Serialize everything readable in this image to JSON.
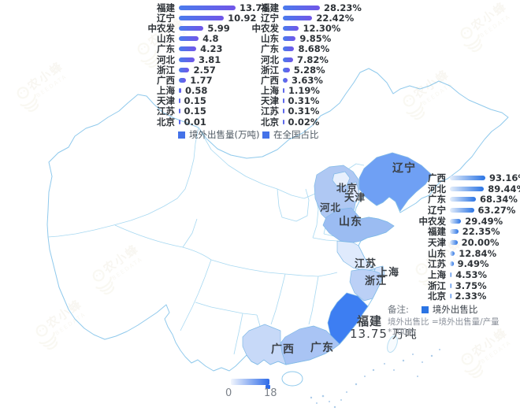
{
  "watermark": {
    "brand": "农小蜂",
    "sub": "BEEDATA"
  },
  "chart_data": [
    {
      "id": "volume",
      "type": "bar",
      "orientation": "horizontal",
      "legend": "境外出售量(万吨)",
      "categories": [
        "福建",
        "辽宁",
        "中农发",
        "山东",
        "广东",
        "河北",
        "浙江",
        "广西",
        "上海",
        "天津",
        "江苏",
        "北京"
      ],
      "values": [
        13.75,
        10.92,
        5.99,
        4.8,
        4.23,
        3.81,
        2.57,
        1.77,
        0.58,
        0.15,
        0.15,
        0.01
      ],
      "value_labels": [
        "13.75",
        "10.92",
        "5.99",
        "4.8",
        "4.23",
        "3.81",
        "2.57",
        "1.77",
        "0.58",
        "0.15",
        "0.15",
        "0.01"
      ],
      "xlim": [
        0,
        13.75
      ],
      "bar_gradient": [
        "#4A7BEC",
        "#7156E8"
      ]
    },
    {
      "id": "share",
      "type": "bar",
      "orientation": "horizontal",
      "legend": "在全国占比",
      "categories": [
        "福建",
        "辽宁",
        "中农发",
        "山东",
        "广东",
        "河北",
        "浙江",
        "广西",
        "上海",
        "天津",
        "江苏",
        "北京"
      ],
      "values": [
        28.23,
        22.42,
        12.3,
        9.85,
        8.68,
        7.82,
        5.28,
        3.63,
        1.19,
        0.31,
        0.31,
        0.02
      ],
      "value_labels": [
        "28.23%",
        "22.42%",
        "12.30%",
        "9.85%",
        "8.68%",
        "7.82%",
        "5.28%",
        "3.63%",
        "1.19%",
        "0.31%",
        "0.31%",
        "0.02%"
      ],
      "xlim": [
        0,
        28.23
      ],
      "bar_gradient": [
        "#4A7BEC",
        "#7156E8"
      ]
    },
    {
      "id": "ratio",
      "type": "bar",
      "orientation": "horizontal",
      "legend": "境外出售比",
      "note_label": "备注:",
      "note": "境外出售比 =境外出售量/产量*100%",
      "categories": [
        "广西",
        "河北",
        "广东",
        "辽宁",
        "中农发",
        "福建",
        "天津",
        "山东",
        "江苏",
        "上海",
        "浙江",
        "北京"
      ],
      "values": [
        93.16,
        89.44,
        68.34,
        63.27,
        29.49,
        22.35,
        20.0,
        12.84,
        9.49,
        4.53,
        3.75,
        2.33
      ],
      "value_labels": [
        "93.16%",
        "89.44%",
        "68.34%",
        "63.27%",
        "29.49%",
        "22.35%",
        "20.00%",
        "12.84%",
        "9.49%",
        "4.53%",
        "3.75%",
        "2.33%"
      ],
      "xlim": [
        0,
        93.16
      ],
      "bar_gradient": [
        "#E4EEFB",
        "#2B74E4"
      ]
    },
    {
      "id": "map",
      "type": "choropleth",
      "annotation": "13.75 万吨",
      "labels": [
        "辽宁",
        "北京",
        "天津",
        "河北",
        "山东",
        "江苏",
        "上海",
        "浙江",
        "福建",
        "广西",
        "广东"
      ],
      "regions": [
        {
          "id": "fujian",
          "name": "福建",
          "value": 13.75,
          "fill": "#3D7EF2"
        },
        {
          "id": "liaoning",
          "name": "辽宁",
          "value": 10.92,
          "fill": "#6FA0F4"
        },
        {
          "id": "shandong",
          "name": "山东",
          "value": 4.8,
          "fill": "#9BBCF2"
        },
        {
          "id": "guangdong",
          "name": "广东",
          "value": 4.23,
          "fill": "#A9C4F4"
        },
        {
          "id": "hebei",
          "name": "河北",
          "value": 3.81,
          "fill": "#AFC8F3"
        },
        {
          "id": "zhejiang",
          "name": "浙江",
          "value": 2.57,
          "fill": "#BBD0F6"
        },
        {
          "id": "guangxi",
          "name": "广西",
          "value": 1.77,
          "fill": "#C7D9F8"
        },
        {
          "id": "shanghai",
          "name": "上海",
          "value": 0.58,
          "fill": "#D8E5FB"
        },
        {
          "id": "tianjin",
          "name": "天津",
          "value": 0.15,
          "fill": "#DFE9FC"
        },
        {
          "id": "jiangsu",
          "name": "江苏",
          "value": 0.15,
          "fill": "#DFEAFC"
        },
        {
          "id": "beijing",
          "name": "北京",
          "value": 0.01,
          "fill": "#E8F0FD"
        }
      ],
      "scale": {
        "min": "0",
        "max": "18",
        "colors": [
          "#F2F6FD",
          "#2E6BE8"
        ]
      },
      "outline_color": "#8FC9EC"
    }
  ]
}
